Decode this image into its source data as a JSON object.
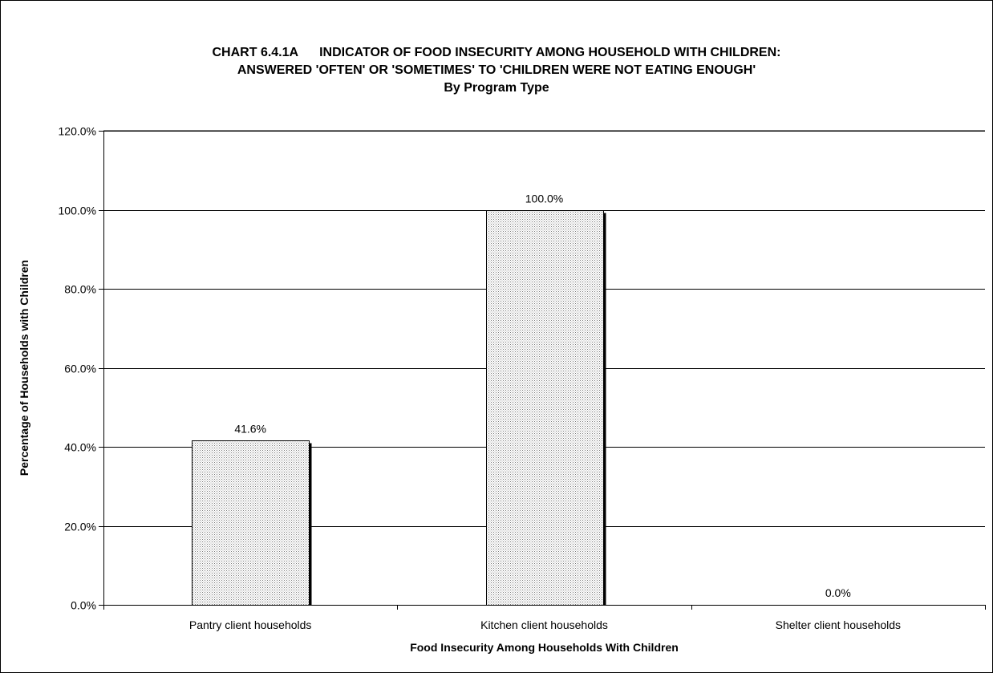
{
  "chart_data": {
    "type": "bar",
    "title_lines": [
      [
        "CHART 6.4.1A",
        "INDICATOR OF FOOD INSECURITY AMONG HOUSEHOLD WITH CHILDREN:"
      ],
      [
        "ANSWERED 'OFTEN' OR 'SOMETIMES' TO 'CHILDREN WERE NOT EATING ENOUGH'"
      ],
      [
        "By Program Type"
      ]
    ],
    "categories": [
      "Pantry client households",
      "Kitchen client households",
      "Shelter client households"
    ],
    "values": [
      41.6,
      100.0,
      0.0
    ],
    "value_labels": [
      "41.6%",
      "100.0%",
      "0.0%"
    ],
    "xlabel": "Food Insecurity Among Households With Children",
    "ylabel": "Percentage of Households with Children",
    "ylim": [
      0,
      120
    ],
    "yticks": [
      0,
      20,
      40,
      60,
      80,
      100,
      120
    ],
    "ytick_labels": [
      "0.0%",
      "20.0%",
      "40.0%",
      "60.0%",
      "80.0%",
      "100.0%",
      "120.0%"
    ],
    "grid": true,
    "legend": "none",
    "colors": {
      "bar_fill": "#d9d9d9",
      "bar_outline": "#000000",
      "grid": "#000000"
    }
  }
}
